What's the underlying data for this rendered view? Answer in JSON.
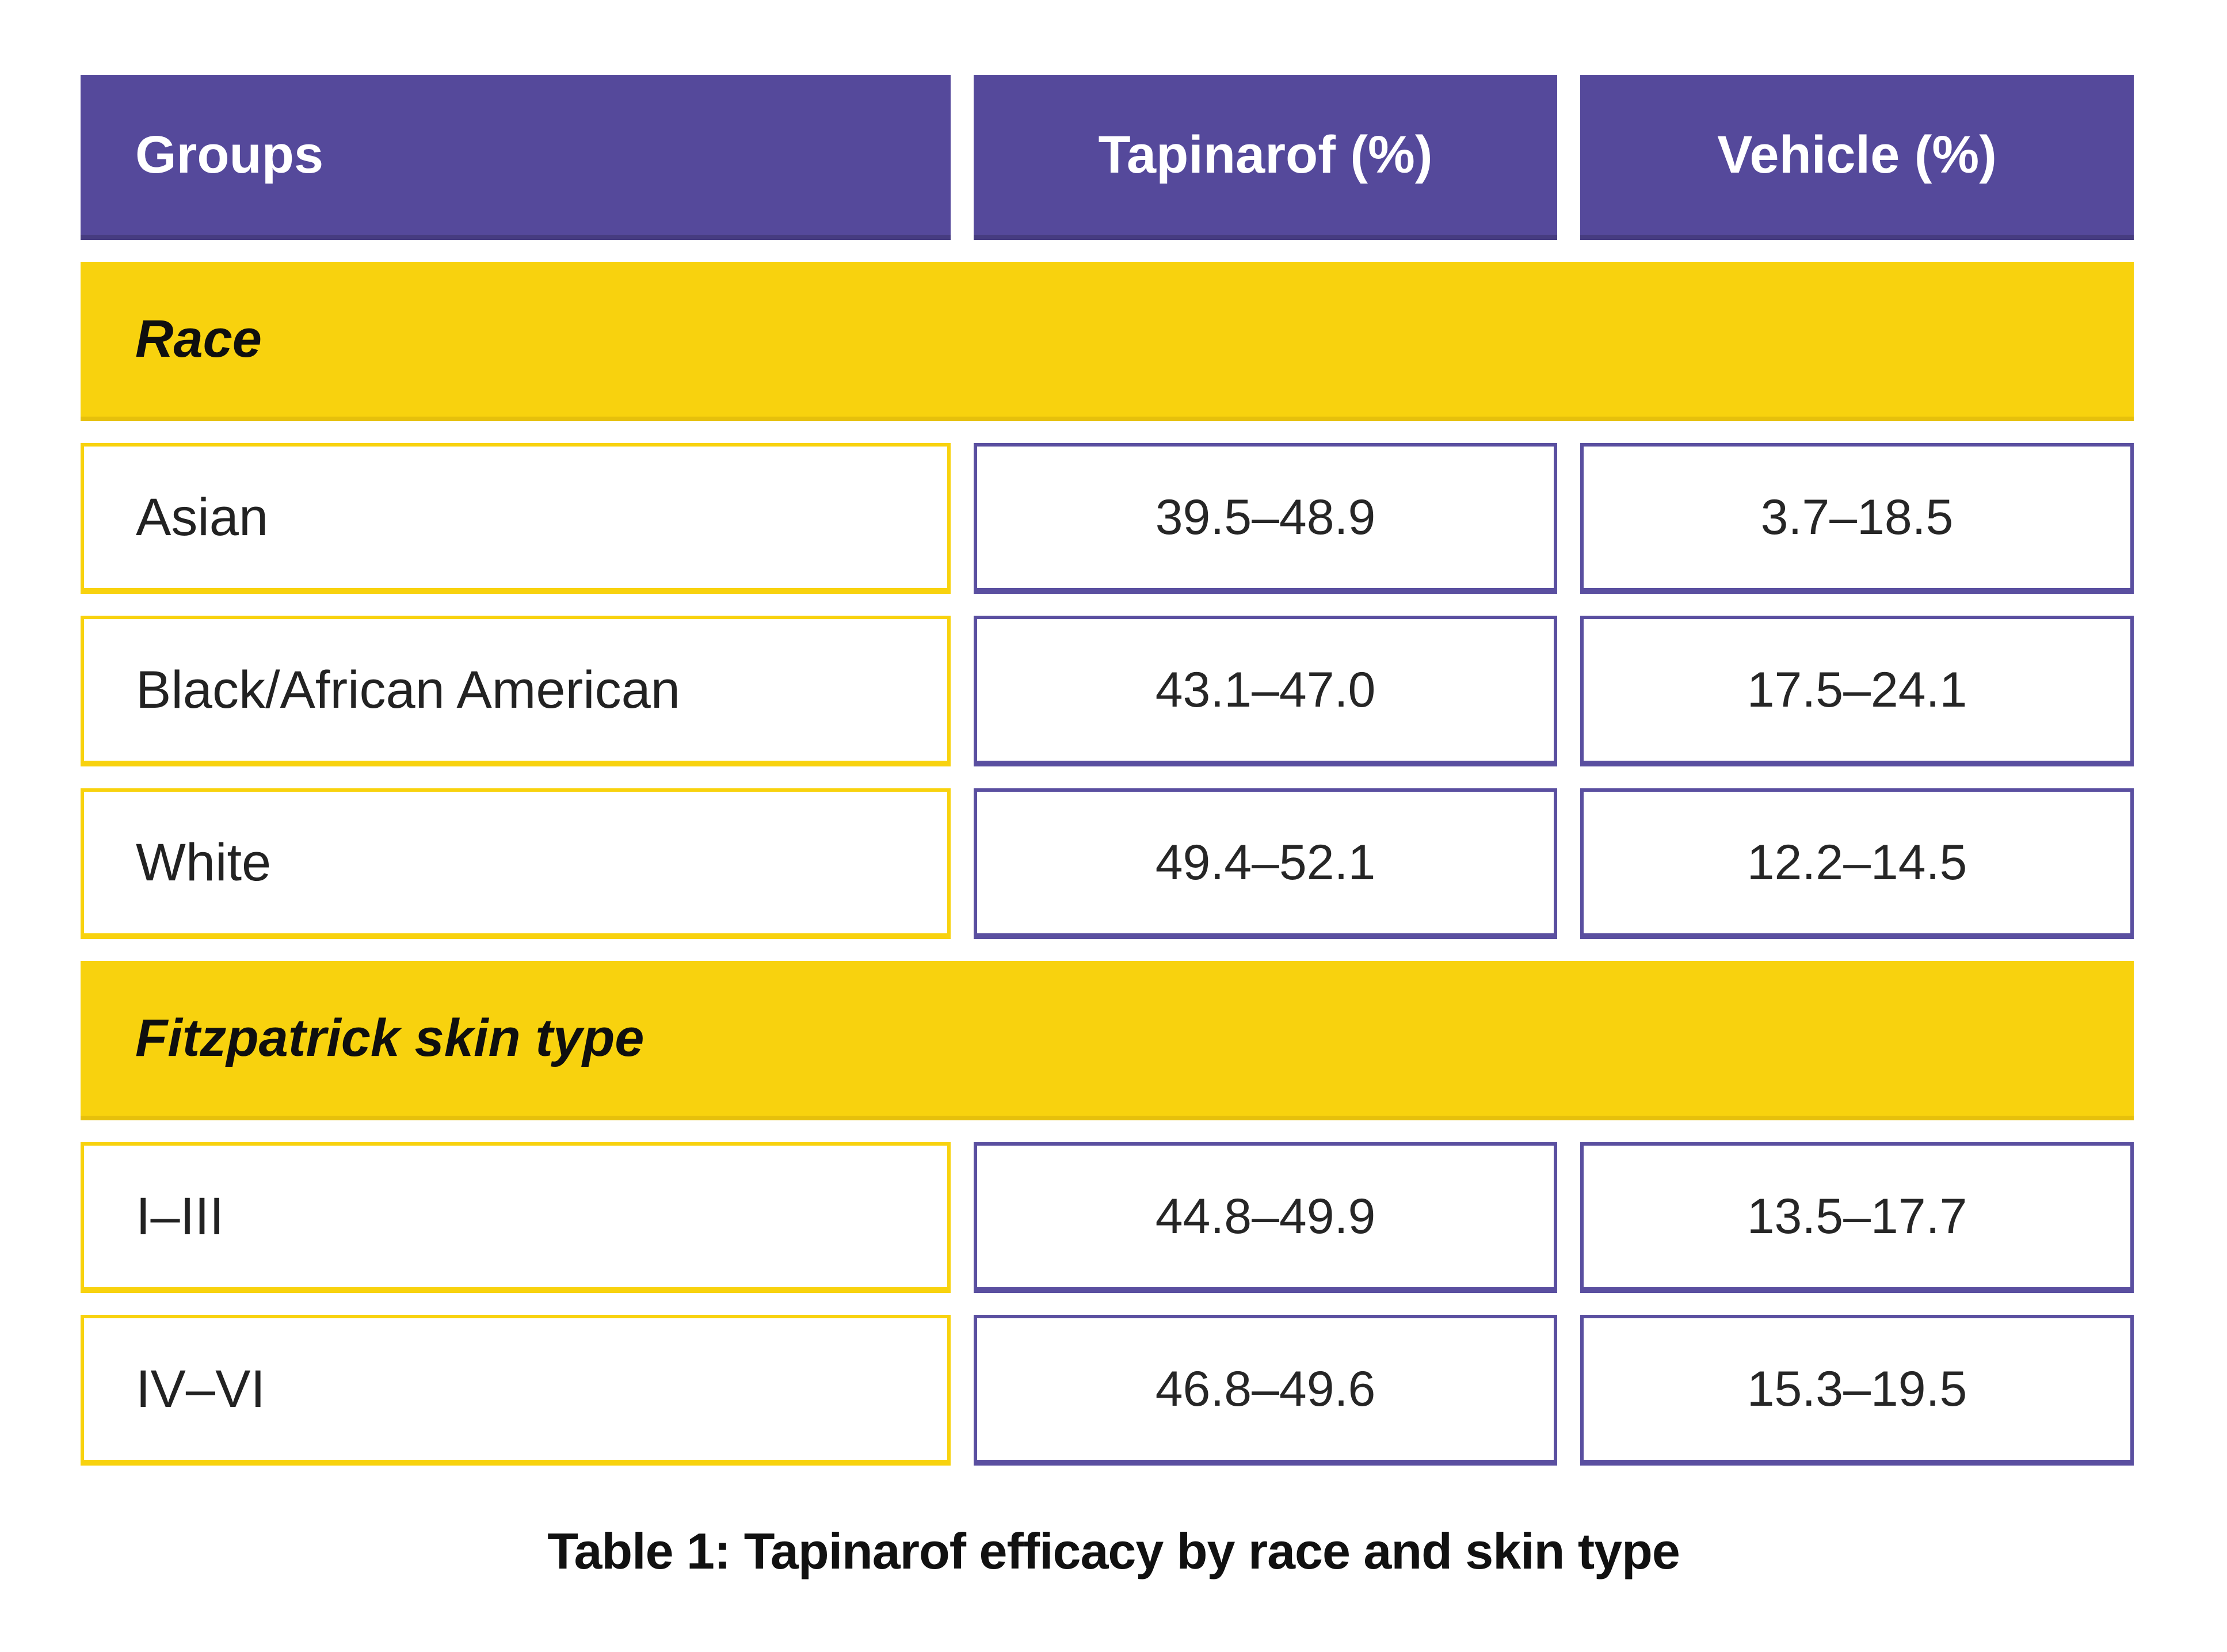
{
  "chart_data": {
    "type": "table",
    "title": "Table 1: Tapinarof efficacy by race and skin type",
    "columns": [
      "Groups",
      "Tapinarof (%)",
      "Vehicle (%)"
    ],
    "sections": [
      {
        "header": "Race",
        "rows": [
          [
            "Asian",
            "39.5–48.9",
            "3.7–18.5"
          ],
          [
            "Black/African American",
            "43.1–47.0",
            "17.5–24.1"
          ],
          [
            "White",
            "49.4–52.1",
            "12.2–14.5"
          ]
        ]
      },
      {
        "header": "Fitzpatrick skin type",
        "rows": [
          [
            "I–III",
            "44.8–49.9",
            "13.5–17.7"
          ],
          [
            "IV–VI",
            "46.8–49.6",
            "15.3–19.5"
          ]
        ]
      }
    ],
    "caption": "Table 1: Tapinarof efficacy by race and skin type"
  },
  "colors": {
    "purple": "#55499B",
    "purple_border": "#5A4FA0",
    "yellow": "#F8D20E",
    "header_text": "#FFFFFF",
    "body_text": "#222222",
    "page_background": "#FFFFFF"
  }
}
